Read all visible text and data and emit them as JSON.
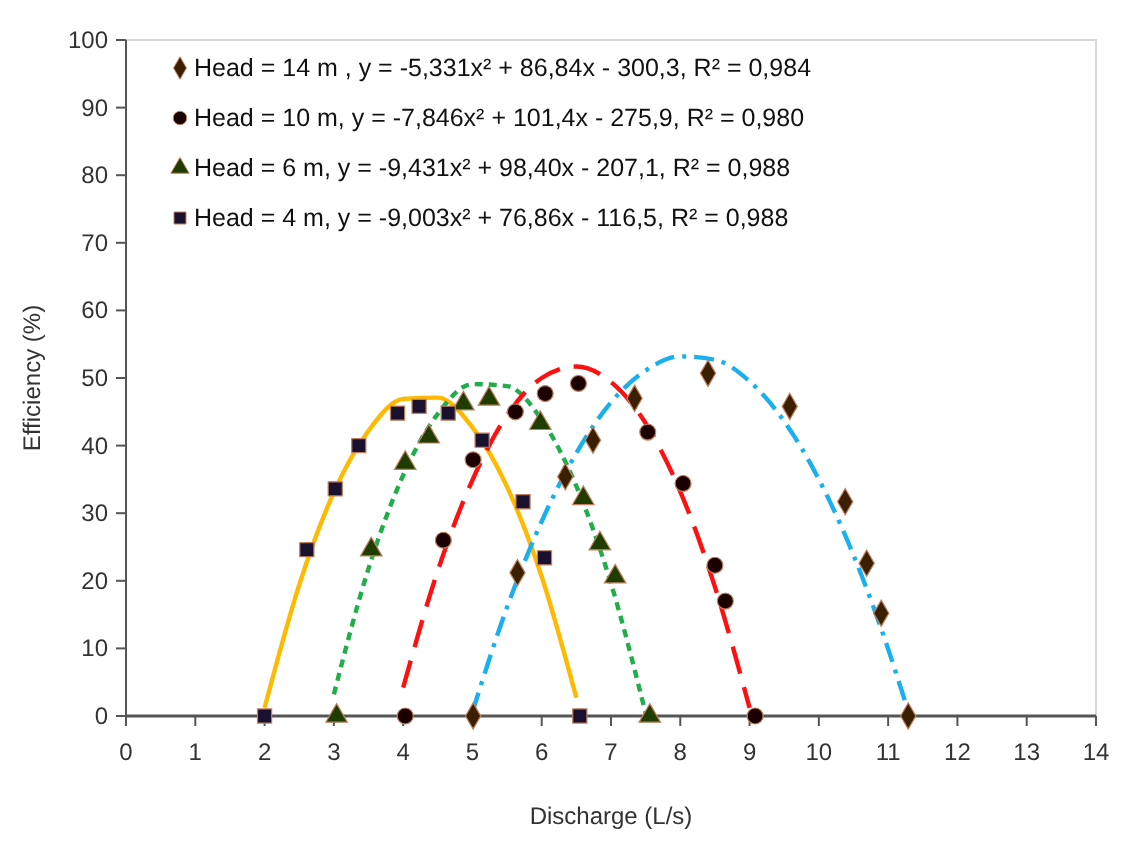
{
  "chart_data": {
    "type": "scatter",
    "xlabel": "Discharge (L/s)",
    "ylabel": "Efficiency (%)",
    "xlim": [
      0,
      14
    ],
    "ylim": [
      0,
      100
    ],
    "xticks": [
      0,
      1,
      2,
      3,
      4,
      5,
      6,
      7,
      8,
      9,
      10,
      11,
      12,
      13,
      14
    ],
    "yticks": [
      0,
      10,
      20,
      30,
      40,
      50,
      60,
      70,
      80,
      90,
      100
    ],
    "grid": false,
    "legend": "top left",
    "series": [
      {
        "name": "Head = 14 m , y = -5,331x² + 86,84x - 300,3, R² = 0,984",
        "color": "#3a1f00",
        "marker": "diamond",
        "x": [
          5.01,
          5.65,
          6.34,
          6.74,
          7.34,
          8.4,
          9.58,
          10.38,
          10.69,
          10.9,
          11.29
        ],
        "values": [
          0,
          21.2,
          35.4,
          40.8,
          47,
          50.7,
          45.8,
          31.7,
          22.6,
          15.2,
          0
        ]
      },
      {
        "name": "Head = 10 m, y = -7,846x² + 101,4x - 275,9, R² = 0,980",
        "color": "#1a0000",
        "marker": "circle",
        "x": [
          4.03,
          4.58,
          5.01,
          5.62,
          6.05,
          6.53,
          7.53,
          8.04,
          8.5,
          8.65,
          9.08
        ],
        "values": [
          0,
          26,
          37.9,
          45,
          47.7,
          49.2,
          42,
          34.4,
          22.3,
          17,
          0
        ]
      },
      {
        "name": "Head = 6 m, y = -9,431x² + 98,40x - 207,1, R² = 0,988",
        "color": "#1f3d00",
        "marker": "triangle",
        "x": [
          3.04,
          3.54,
          4.03,
          4.37,
          4.87,
          5.24,
          5.98,
          6.6,
          6.84,
          7.06,
          7.56
        ],
        "values": [
          0,
          24.6,
          37.4,
          41.3,
          46.2,
          46.9,
          43.3,
          32.2,
          25.5,
          20.6,
          0
        ]
      },
      {
        "name": "Head = 4 m, y = -9,003x² + 76,86x - 116,5, R² = 0,988",
        "color": "#1a1030",
        "marker": "square",
        "x": [
          2,
          2.61,
          3.02,
          3.36,
          3.92,
          4.23,
          4.65,
          5.14,
          5.73,
          6.04,
          6.55
        ],
        "values": [
          0,
          24.6,
          33.6,
          40,
          44.8,
          45.8,
          44.8,
          40.8,
          31.7,
          23.4,
          0
        ]
      },
      {
        "type": "line",
        "color": "#ffb900",
        "line_style": "solid",
        "marker": "none",
        "x": [
          2,
          2.5,
          3,
          3.5,
          4,
          4.5,
          5,
          5.5,
          6,
          6.5
        ],
        "values": [
          1.2,
          19.4,
          33.1,
          42.2,
          46.9,
          47.1,
          42.7,
          33.9,
          20.6,
          2.7
        ]
      },
      {
        "type": "line",
        "color": "#1fae4a",
        "line_style": "dotted",
        "marker": "none",
        "x": [
          3,
          3.5,
          4,
          4.5,
          5,
          5.5,
          6,
          6.5,
          7,
          7.5
        ],
        "values": [
          3.2,
          21.8,
          35.6,
          44.7,
          49.1,
          48.8,
          43.8,
          34,
          19.6,
          0.4
        ]
      },
      {
        "type": "line",
        "color": "#ff1010",
        "line_style": "dashed",
        "marker": "none",
        "x": [
          4,
          4.5,
          5,
          5.5,
          6,
          6.5,
          7,
          7.5,
          8,
          8.5,
          9
        ],
        "values": [
          4.2,
          21.5,
          34.9,
          44.5,
          50,
          51.7,
          49.4,
          43.3,
          33.2,
          19.1,
          1.2
        ]
      },
      {
        "type": "line",
        "color": "#1ab0f0",
        "line_style": "dashdot",
        "marker": "none",
        "x": [
          5,
          5.5,
          6,
          6.5,
          7,
          7.5,
          8,
          8.5,
          9,
          9.5,
          10,
          10.5,
          11,
          11.25
        ],
        "values": [
          0.6,
          16.1,
          28.8,
          38.9,
          46.4,
          51.1,
          53.2,
          52.7,
          49.5,
          43.6,
          35,
          23.8,
          9.9,
          2
        ]
      }
    ]
  }
}
